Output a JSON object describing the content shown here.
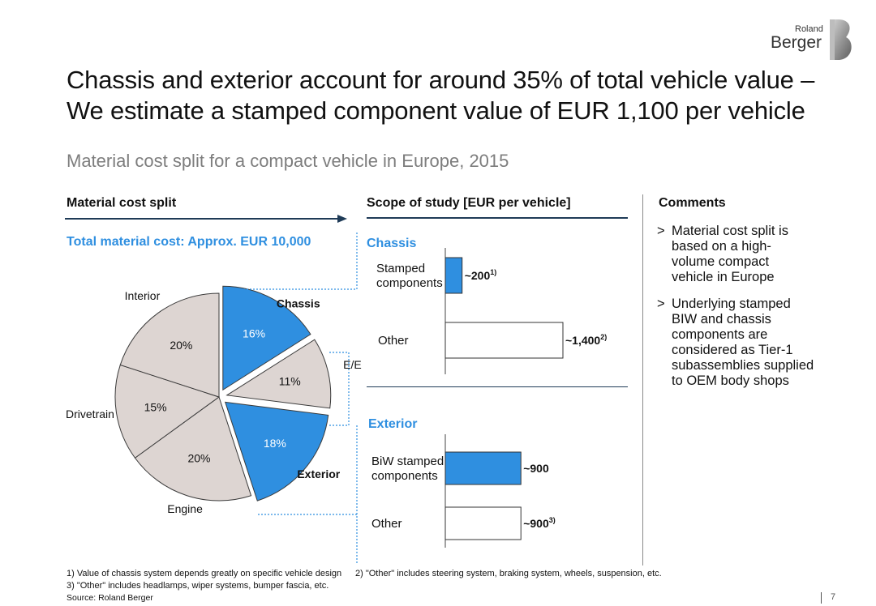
{
  "title_line1": "Chassis and exterior account for around 35% of total vehicle value –",
  "title_line2": "We estimate a stamped component value of EUR 1,100 per vehicle",
  "subtitle": "Material cost split for a compact vehicle in Europe, 2015",
  "logo": {
    "line1": "Roland",
    "line2": "Berger"
  },
  "left_header": "Material cost split",
  "total_label": "Total material cost: Approx. EUR 10,000",
  "middle_header": "Scope of study [EUR per vehicle]",
  "right_header": "Comments",
  "comments": [
    {
      "marker": ">",
      "lines": [
        "Material cost split is",
        "based on a high-",
        "volume compact",
        "vehicle in Europe"
      ]
    },
    {
      "marker": ">",
      "lines": [
        "Underlying stamped",
        "BIW and chassis",
        "components are",
        "considered as Tier-1",
        "subassemblies supplied",
        "to OEM body shops"
      ]
    }
  ],
  "footnotes": {
    "f1": "1) Value of chassis system depends greatly on specific vehicle design",
    "f2": "2) \"Other\" includes steering system, braking system, wheels, suspension, etc.",
    "f3": "3) \"Other\" includes headlamps, wiper systems, bumper fascia, etc.",
    "source": "Source: Roland Berger"
  },
  "page_number": "7",
  "colors": {
    "highlight": "#2f8fe0",
    "base": "#ddd5d2",
    "dark_line": "#1f3b57",
    "subtitle": "#7d7d7d"
  },
  "chart_data": [
    {
      "type": "pie",
      "title": "Total material cost: Approx. EUR 10,000",
      "slices": [
        {
          "name": "Chassis",
          "value": 16,
          "label": "16%",
          "highlight": true,
          "exploded": true,
          "bold": true
        },
        {
          "name": "E/E",
          "value": 11,
          "label": "11%",
          "highlight": false,
          "exploded": true,
          "bold": false
        },
        {
          "name": "Exterior",
          "value": 18,
          "label": "18%",
          "highlight": true,
          "exploded": true,
          "bold": true
        },
        {
          "name": "Engine",
          "value": 20,
          "label": "20%",
          "highlight": false,
          "exploded": false,
          "bold": false
        },
        {
          "name": "Drivetrain",
          "value": 15,
          "label": "15%",
          "highlight": false,
          "exploded": false,
          "bold": false
        },
        {
          "name": "Interior",
          "value": 20,
          "label": "20%",
          "highlight": false,
          "exploded": false,
          "bold": false
        }
      ]
    },
    {
      "type": "bar",
      "title": "Chassis",
      "categories": [
        "Stamped components",
        "Other"
      ],
      "values": [
        200,
        1400
      ],
      "value_labels": [
        "~200",
        "~1,400"
      ],
      "footnote_refs": [
        "1)",
        "2)"
      ],
      "highlight": [
        true,
        false
      ]
    },
    {
      "type": "bar",
      "title": "Exterior",
      "categories": [
        "BiW stamped components",
        "Other"
      ],
      "values": [
        900,
        900
      ],
      "value_labels": [
        "~900",
        "~900"
      ],
      "footnote_refs": [
        "",
        "3)"
      ],
      "highlight": [
        true,
        false
      ]
    }
  ]
}
